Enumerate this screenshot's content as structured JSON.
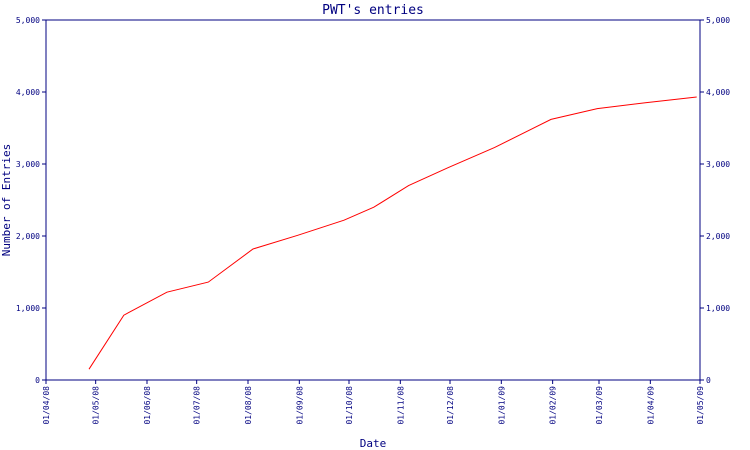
{
  "chart_data": {
    "type": "line",
    "title": "PWT's entries",
    "xlabel": "Date",
    "ylabel": "Number of Entries",
    "ylim": [
      0,
      5000
    ],
    "yticks": [
      0,
      1000,
      2000,
      3000,
      4000,
      5000
    ],
    "ytick_labels": [
      "0",
      "1,000",
      "2,000",
      "3,000",
      "4,000",
      "5,000"
    ],
    "xlim": [
      "2008-04-01",
      "2009-05-01"
    ],
    "x_ticks": [
      {
        "date": "2008-04-01",
        "label": "01/04/08"
      },
      {
        "date": "2008-05-01",
        "label": "01/05/08"
      },
      {
        "date": "2008-06-01",
        "label": "01/06/08"
      },
      {
        "date": "2008-07-01",
        "label": "01/07/08"
      },
      {
        "date": "2008-08-01",
        "label": "01/08/08"
      },
      {
        "date": "2008-09-01",
        "label": "01/09/08"
      },
      {
        "date": "2008-10-01",
        "label": "01/10/08"
      },
      {
        "date": "2008-11-01",
        "label": "01/11/08"
      },
      {
        "date": "2008-12-01",
        "label": "01/12/08"
      },
      {
        "date": "2009-01-01",
        "label": "01/01/09"
      },
      {
        "date": "2009-02-01",
        "label": "01/02/09"
      },
      {
        "date": "2009-03-01",
        "label": "01/03/09"
      },
      {
        "date": "2009-04-01",
        "label": "01/04/09"
      },
      {
        "date": "2009-05-01",
        "label": "01/05/09"
      }
    ],
    "grid": false,
    "series": [
      {
        "color": "#ff0000",
        "x": [
          "2008-04-27",
          "2008-05-18",
          "2008-06-13",
          "2008-07-08",
          "2008-08-04",
          "2008-08-31",
          "2008-09-28",
          "2008-10-16",
          "2008-11-06",
          "2008-11-30",
          "2008-12-28",
          "2009-01-31",
          "2009-02-28",
          "2009-03-29",
          "2009-04-29"
        ],
        "y": [
          150,
          900,
          1220,
          1360,
          1820,
          2010,
          2220,
          2400,
          2700,
          2950,
          3230,
          3620,
          3770,
          3850,
          3930
        ]
      }
    ]
  }
}
